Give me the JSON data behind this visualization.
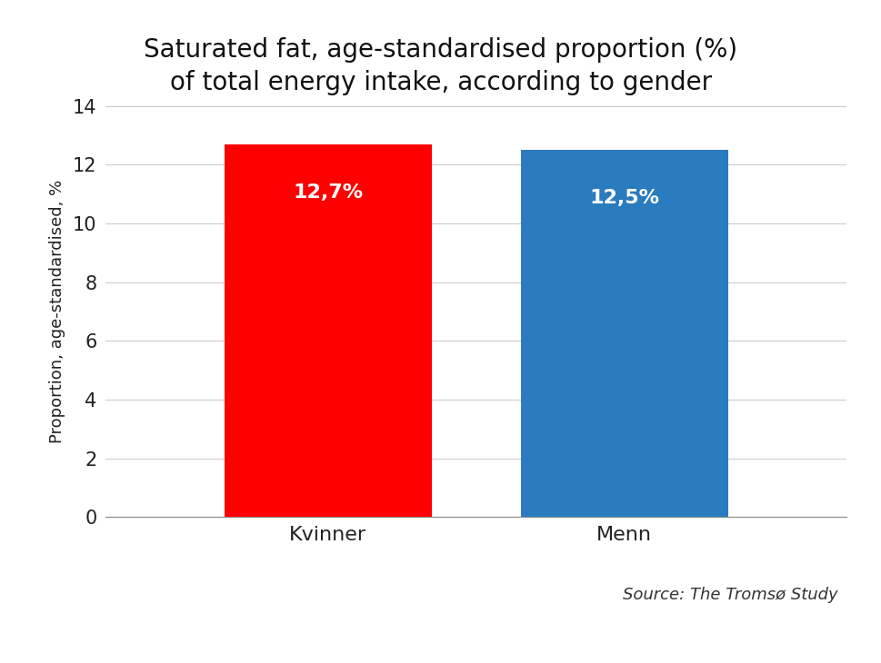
{
  "categories": [
    "Kvinner",
    "Menn"
  ],
  "values": [
    12.7,
    12.5
  ],
  "bar_colors": [
    "#ff0000",
    "#2b7bbf"
  ],
  "bar_labels": [
    "12,7%",
    "12,5%"
  ],
  "title_line1": "Saturated fat, age-standardised proportion (%)",
  "title_line2": "of total energy intake, according to gender",
  "ylabel": "Proportion, age-standardised, %",
  "ylim": [
    0,
    14
  ],
  "yticks": [
    0,
    2,
    4,
    6,
    8,
    10,
    12,
    14
  ],
  "source_text": "Source: The Tromsø Study",
  "background_color": "#ffffff",
  "label_fontsize": 16,
  "title_fontsize": 20,
  "ylabel_fontsize": 13,
  "tick_fontsize": 15,
  "bar_label_fontsize": 16,
  "bar_width": 0.28,
  "x_positions": [
    0.3,
    0.7
  ]
}
